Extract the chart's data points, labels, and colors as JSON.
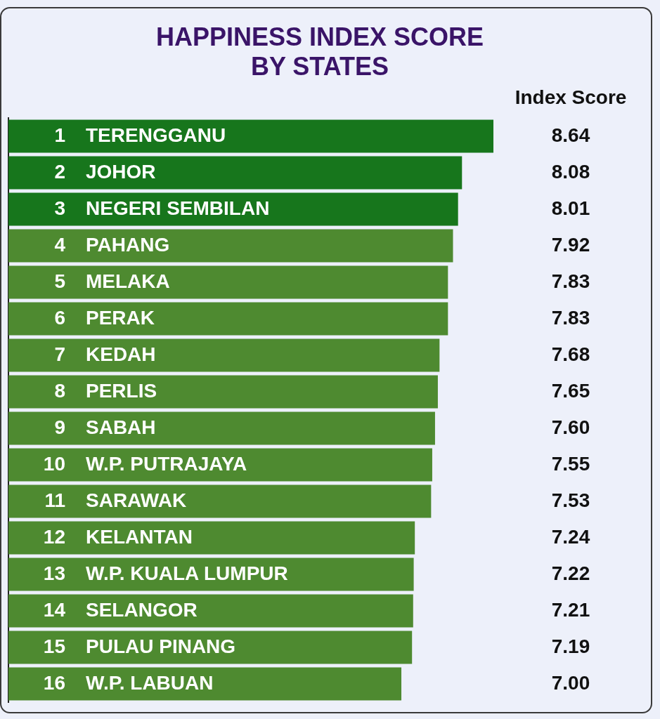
{
  "chart_data": {
    "type": "bar",
    "orientation": "horizontal",
    "title": "HAPPINESS INDEX SCORE BY STATES",
    "annotations": [
      "Index Score"
    ],
    "categories": [
      "1 TERENGGANU",
      "2 JOHOR",
      "3 NEGERI SEMBILAN",
      "4 PAHANG",
      "5 MELAKA",
      "6 PERAK",
      "7 KEDAH",
      "8 PERLIS",
      "9 SABAH",
      "10 W.P. PUTRAJAYA",
      "11 SARAWAK",
      "12 KELANTAN",
      "13 W.P. KUALA LUMPUR",
      "14 SELANGOR",
      "15 PULAU PINANG",
      "16 W.P. LABUAN"
    ],
    "values": [
      8.64,
      8.08,
      8.01,
      7.92,
      7.83,
      7.83,
      7.68,
      7.65,
      7.6,
      7.55,
      7.53,
      7.24,
      7.22,
      7.21,
      7.19,
      7.0
    ],
    "value_labels": [
      "8.64",
      "8.08",
      "8.01",
      "7.92",
      "7.83",
      "7.83",
      "7.68",
      "7.65",
      "7.60",
      "7.55",
      "7.53",
      "7.24",
      "7.22",
      "7.21",
      "7.19",
      "7.00"
    ],
    "colors": [
      "#17761c",
      "#17761c",
      "#17761c",
      "#4e8a30",
      "#4e8a30",
      "#4e8a30",
      "#4e8a30",
      "#4e8a30",
      "#4e8a30",
      "#4e8a30",
      "#4e8a30",
      "#4e8a30",
      "#4e8a30",
      "#4e8a30",
      "#4e8a30",
      "#4e8a30"
    ],
    "tick_labels": "y"
  }
}
